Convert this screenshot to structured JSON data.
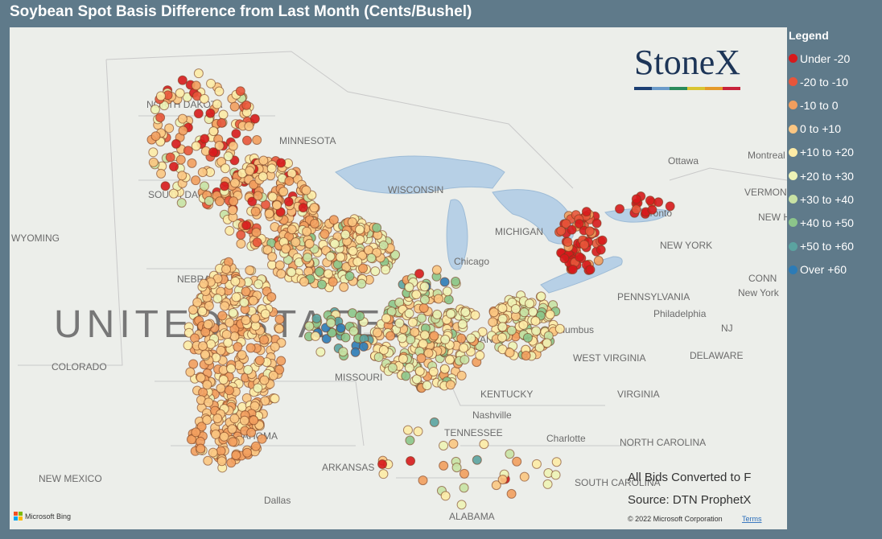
{
  "title": "Soybean Spot Basis Difference from Last Month (Cents/Bushel)",
  "legend": {
    "title": "Legend",
    "items": [
      {
        "label": "Under -20",
        "color": "#d7191c"
      },
      {
        "label": "-20 to -10",
        "color": "#e8553a"
      },
      {
        "label": "-10 to 0",
        "color": "#f29e5e"
      },
      {
        "label": "0 to +10",
        "color": "#fbc682"
      },
      {
        "label": "+10 to +20",
        "color": "#fdeba6"
      },
      {
        "label": "+20 to +30",
        "color": "#eef3b6"
      },
      {
        "label": "+30 to +40",
        "color": "#c8e2a4"
      },
      {
        "label": "+40 to +50",
        "color": "#8cc58a"
      },
      {
        "label": "+50 to +60",
        "color": "#5ba3a0"
      },
      {
        "label": "Over +60",
        "color": "#2c7bb6"
      }
    ]
  },
  "logo": "StoneX",
  "map": {
    "labels": [
      "NORTH DAKOTA",
      "MINNESOTA",
      "SOUTH DAKOTA",
      "WYOMING",
      "NEBRASKA",
      "UNITED STATES",
      "COLORADO",
      "MISSOURI",
      "KENTUCKY",
      "TENNESSEE",
      "OKLAHOMA",
      "ARKANSAS",
      "NEW MEXICO",
      "Dallas",
      "ALABAMA",
      "Nashville",
      "Chicago",
      "MICHIGAN",
      "WISCONSIN",
      "INDIANA",
      "Columbus",
      "WEST VIRGINIA",
      "VIRGINIA",
      "NORTH CAROLINA",
      "SOUTH CAROLINA",
      "Charlotte",
      "PENNSYLVANIA",
      "Philadelphia",
      "NEW YORK",
      "New York",
      "Toronto",
      "Ottawa",
      "Montreal",
      "VERMONT",
      "DELAWARE",
      "NJ",
      "NEW HAMPSHIRE",
      "CONN"
    ]
  },
  "notes": [
    "All Bids Converted to F",
    "Source: DTN ProphetX"
  ],
  "copyright": "© 2022 Microsoft Corporation",
  "terms": "Terms",
  "attribution": "Microsoft Bing"
}
